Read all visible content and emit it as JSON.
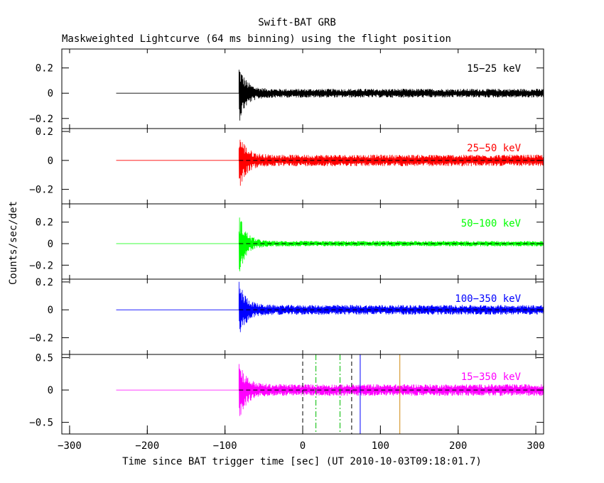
{
  "chart_data": {
    "type": "line",
    "title": "Swift-BAT GRB",
    "subtitle": "Maskweighted Lightcurve (64 ms binning) using the flight position",
    "xlabel": "Time since BAT trigger time [sec] (UT 2010-10-03T09:18:01.7)",
    "ylabel": "Counts/sec/det",
    "xlim": [
      -310,
      310
    ],
    "x_ticks": [
      -300,
      -200,
      -100,
      0,
      100,
      200,
      300
    ],
    "x_tick_labels": [
      "-300",
      "-200",
      "-100",
      "0",
      "100",
      "200",
      "300"
    ],
    "data_start": -240,
    "burst_start": -82,
    "panels": [
      {
        "name": "15-25 keV",
        "label": "15−25 keV",
        "color": "#000000",
        "ylim": [
          -0.28,
          0.35
        ],
        "ticks": [
          -0.2,
          0,
          0.2
        ],
        "tick_labels": [
          "−0.2",
          "0",
          "0.2"
        ],
        "noise": 0.035,
        "spike": 0.24
      },
      {
        "name": "25-50 keV",
        "label": "25−50 keV",
        "color": "#ff0000",
        "ylim": [
          -0.3,
          0.22
        ],
        "ticks": [
          -0.2,
          0,
          0.2
        ],
        "tick_labels": [
          "−0.2",
          "0",
          "0.2"
        ],
        "noise": 0.04,
        "spike": 0.21
      },
      {
        "name": "50-100 keV",
        "label": "50−100 keV",
        "color": "#00ff00",
        "ylim": [
          -0.33,
          0.37
        ],
        "ticks": [
          -0.2,
          0,
          0.2
        ],
        "tick_labels": [
          "−0.2",
          "0",
          "0.2"
        ],
        "noise": 0.025,
        "spike": 0.3
      },
      {
        "name": "100-350 keV",
        "label": "100−350 keV",
        "color": "#0000ff",
        "ylim": [
          -0.32,
          0.22
        ],
        "ticks": [
          -0.2,
          0,
          0.2
        ],
        "tick_labels": [
          "−0.2",
          "0",
          "0.2"
        ],
        "noise": 0.035,
        "spike": 0.22
      },
      {
        "name": "15-350 keV",
        "label": "15−350 keV",
        "color": "#ff00ff",
        "ylim": [
          -0.68,
          0.55
        ],
        "ticks": [
          -0.5,
          0,
          0.5
        ],
        "tick_labels": [
          "−0.5",
          "0",
          "0.5"
        ],
        "noise": 0.09,
        "spike": 0.5
      }
    ],
    "markers": [
      {
        "x": 0,
        "color": "#000000",
        "style": "dashed"
      },
      {
        "x": 17,
        "color": "#00bb00",
        "style": "dashdot"
      },
      {
        "x": 48,
        "color": "#00bb00",
        "style": "dashdot"
      },
      {
        "x": 63,
        "color": "#000000",
        "style": "dashed"
      },
      {
        "x": 74,
        "color": "#0000ff",
        "style": "solid"
      },
      {
        "x": 125,
        "color": "#d08a10",
        "style": "solid"
      }
    ]
  }
}
